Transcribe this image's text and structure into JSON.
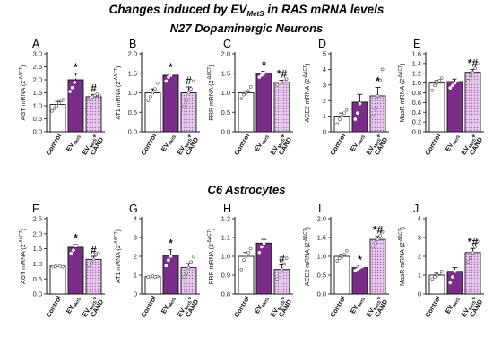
{
  "figure": {
    "title_main": "Changes induced by EV",
    "title_sub": "MetS",
    "title_rest": " in RAS mRNA levels",
    "row_titles": [
      "N27 Dopaminergic Neurons",
      "C6 Astrocytes"
    ]
  },
  "categories": [
    {
      "main": "Control",
      "sub": "",
      "suffix": ""
    },
    {
      "main": "EV",
      "sub": "MetS",
      "suffix": ""
    },
    {
      "main": "EV",
      "sub": "MetS",
      "suffix": "+",
      "line2": "CAND"
    }
  ],
  "colors": {
    "control": "#ffffff",
    "mets": "#7b2d8a",
    "cand": "#cfa0d6",
    "cand_dots": "#a266ae",
    "axis": "#111111"
  },
  "chart_data": [
    {
      "type": "bar",
      "panel": "A",
      "row": 0,
      "ylabel": "AGT mRNA (2",
      "ylabel_sup": "-ΔΔCT",
      "ylim": [
        0,
        3
      ],
      "yticks": [
        0,
        0.5,
        1,
        1.5,
        2,
        2.5,
        3
      ],
      "tick_labels": [
        "0.0",
        "0.5",
        "1.0",
        "1.5",
        "2.0",
        "2.5",
        "3.0"
      ],
      "values": [
        1.05,
        2.0,
        1.35
      ],
      "errors": [
        0.12,
        0.25,
        0.08
      ],
      "points": [
        [
          0.8,
          0.9,
          1.0,
          1.1,
          1.2,
          1.25
        ],
        [
          1.55,
          1.7,
          1.9,
          2.1,
          2.3,
          2.6
        ],
        [
          1.25,
          1.3,
          1.35,
          1.4,
          1.45,
          1.38
        ]
      ],
      "sig": [
        "",
        "*",
        "#"
      ]
    },
    {
      "type": "bar",
      "panel": "B",
      "row": 0,
      "ylabel": "AT1 mRNA (2",
      "ylabel_sup": "-ΔΔCT",
      "ylim": [
        0,
        2
      ],
      "yticks": [
        0,
        0.5,
        1,
        1.5,
        2
      ],
      "tick_labels": [
        "0.0",
        "0.5",
        "1.0",
        "1.5",
        "2.0"
      ],
      "values": [
        1.0,
        1.45,
        1.0
      ],
      "errors": [
        0.1,
        0.05,
        0.15
      ],
      "points": [
        [
          0.8,
          0.9,
          1.0,
          1.1,
          1.25
        ],
        [
          1.3,
          1.4,
          1.45,
          1.5,
          1.55
        ],
        [
          0.65,
          0.8,
          1.0,
          1.1,
          1.3
        ]
      ],
      "sig": [
        "",
        "*",
        "#"
      ]
    },
    {
      "type": "bar",
      "panel": "C",
      "row": 0,
      "ylabel": "PRR mRNA (2",
      "ylabel_sup": "-ΔΔCT",
      "ylim": [
        0,
        2
      ],
      "yticks": [
        0,
        0.5,
        1,
        1.5,
        2
      ],
      "tick_labels": [
        "0.0",
        "0.5",
        "1.0",
        "1.5",
        "2.0"
      ],
      "values": [
        1.0,
        1.5,
        1.27
      ],
      "errors": [
        0.05,
        0.05,
        0.05
      ],
      "points": [
        [
          0.85,
          0.95,
          1.0,
          1.05,
          1.15
        ],
        [
          1.4,
          1.45,
          1.5,
          1.55,
          1.6
        ],
        [
          1.2,
          1.25,
          1.27,
          1.3,
          1.35
        ]
      ],
      "sig": [
        "",
        "*",
        "*#"
      ]
    },
    {
      "type": "bar",
      "panel": "D",
      "row": 0,
      "ylabel": "ACE2 mRNA (2",
      "ylabel_sup": "-ΔΔCT",
      "ylim": [
        0,
        5
      ],
      "yticks": [
        0,
        1,
        2,
        3,
        4,
        5
      ],
      "tick_labels": [
        "0",
        "1",
        "2",
        "3",
        "4",
        "5"
      ],
      "values": [
        1.0,
        1.9,
        2.3
      ],
      "errors": [
        0.2,
        0.5,
        0.55
      ],
      "points": [
        [
          0.5,
          0.8,
          1.0,
          1.2,
          1.4
        ],
        [
          0.8,
          1.2,
          1.8,
          2.8,
          3.5
        ],
        [
          1.0,
          1.5,
          2.3,
          3.3,
          4.0
        ]
      ],
      "sig": [
        "",
        "",
        "*"
      ]
    },
    {
      "type": "bar",
      "panel": "E",
      "row": 0,
      "ylabel": "MasR mRNA (2",
      "ylabel_sup": "-ΔΔCT",
      "ylim": [
        0,
        1.6
      ],
      "yticks": [
        0,
        0.2,
        0.4,
        0.6,
        0.8,
        1,
        1.2,
        1.4,
        1.6
      ],
      "tick_labels": [
        "0.0",
        "0.2",
        "0.4",
        "0.6",
        "0.8",
        "1.0",
        "1.2",
        "1.4",
        "1.6"
      ],
      "values": [
        1.0,
        1.03,
        1.22
      ],
      "errors": [
        0.05,
        0.05,
        0.06
      ],
      "points": [
        [
          0.85,
          0.95,
          1.0,
          1.05,
          1.1
        ],
        [
          0.9,
          0.95,
          1.0,
          1.05,
          1.2
        ],
        [
          1.05,
          1.15,
          1.22,
          1.3,
          1.4
        ]
      ],
      "sig": [
        "",
        "",
        "*#"
      ]
    },
    {
      "type": "bar",
      "panel": "F",
      "row": 1,
      "ylabel": "AGT mRNA (2",
      "ylabel_sup": "-ΔΔCT",
      "ylim": [
        0,
        2.5
      ],
      "yticks": [
        0,
        0.5,
        1,
        1.5,
        2,
        2.5
      ],
      "tick_labels": [
        "0.0",
        "0.5",
        "1.0",
        "1.5",
        "2.0",
        "2.5"
      ],
      "values": [
        0.93,
        1.55,
        1.15
      ],
      "errors": [
        0.03,
        0.1,
        0.1
      ],
      "points": [
        [
          0.9,
          0.92,
          0.95,
          0.93,
          0.9
        ],
        [
          1.35,
          1.45,
          1.6,
          1.7,
          1.75
        ],
        [
          0.95,
          1.05,
          1.15,
          1.3,
          1.35
        ]
      ],
      "sig": [
        "",
        "*",
        "#"
      ]
    },
    {
      "type": "bar",
      "panel": "G",
      "row": 1,
      "ylabel": "AT1 mRNA (2",
      "ylabel_sup": "-ΔΔCT",
      "ylim": [
        0,
        4
      ],
      "yticks": [
        0,
        1,
        2,
        3,
        4
      ],
      "tick_labels": [
        "0",
        "1",
        "2",
        "3",
        "4"
      ],
      "values": [
        0.92,
        2.05,
        1.4
      ],
      "errors": [
        0.03,
        0.3,
        0.22
      ],
      "points": [
        [
          0.9,
          0.92,
          0.95,
          0.9,
          0.93
        ],
        [
          1.5,
          1.8,
          2.0,
          2.3,
          2.8
        ],
        [
          0.9,
          1.1,
          1.4,
          1.7,
          2.0
        ]
      ],
      "sig": [
        "",
        "*",
        ""
      ]
    },
    {
      "type": "bar",
      "panel": "H",
      "row": 1,
      "ylabel": "PRR mRNA (2",
      "ylabel_sup": "-ΔΔCT",
      "ylim": [
        0.8,
        1.2
      ],
      "yticks": [
        0.8,
        0.9,
        1.0,
        1.1,
        1.2
      ],
      "tick_labels": [
        "0.8",
        "0.9",
        "1.0",
        "1.1",
        "1.2"
      ],
      "values": [
        1.0,
        1.07,
        0.93
      ],
      "errors": [
        0.02,
        0.02,
        0.025
      ],
      "points": [
        [
          0.93,
          0.98,
          1.0,
          1.02,
          1.04
        ],
        [
          1.02,
          1.05,
          1.07,
          1.1,
          1.12
        ],
        [
          0.88,
          0.9,
          0.93,
          0.96,
          0.99
        ]
      ],
      "sig": [
        "",
        "",
        "#"
      ]
    },
    {
      "type": "bar",
      "panel": "I",
      "row": 1,
      "ylabel": "ACE2 mRNA (2",
      "ylabel_sup": "-ΔΔCT",
      "ylim": [
        0,
        2
      ],
      "yticks": [
        0,
        0.5,
        1,
        1.5,
        2
      ],
      "tick_labels": [
        "0.0",
        "0.5",
        "1.0",
        "1.5",
        "2.0"
      ],
      "values": [
        1.0,
        0.7,
        1.45
      ],
      "errors": [
        0.05,
        0.04,
        0.08
      ],
      "points": [
        [
          0.88,
          0.95,
          1.0,
          1.05,
          1.15
        ],
        [
          0.62,
          0.66,
          0.7,
          0.73,
          0.78
        ],
        [
          1.25,
          1.35,
          1.45,
          1.55,
          1.65
        ]
      ],
      "sig": [
        "",
        "*",
        "*#"
      ]
    },
    {
      "type": "bar",
      "panel": "J",
      "row": 1,
      "ylabel": "MasR mRNA (2",
      "ylabel_sup": "-ΔΔCT",
      "ylim": [
        0,
        4
      ],
      "yticks": [
        0,
        1,
        2,
        3,
        4
      ],
      "tick_labels": [
        "0",
        "1",
        "2",
        "3",
        "4"
      ],
      "values": [
        1.0,
        1.2,
        2.2
      ],
      "errors": [
        0.1,
        0.2,
        0.22
      ],
      "points": [
        [
          0.8,
          0.9,
          1.0,
          1.1,
          1.2
        ],
        [
          0.6,
          0.9,
          1.2,
          1.6,
          1.8
        ],
        [
          1.7,
          1.9,
          2.2,
          2.5,
          2.8
        ]
      ],
      "sig": [
        "",
        "",
        "*#"
      ]
    }
  ]
}
